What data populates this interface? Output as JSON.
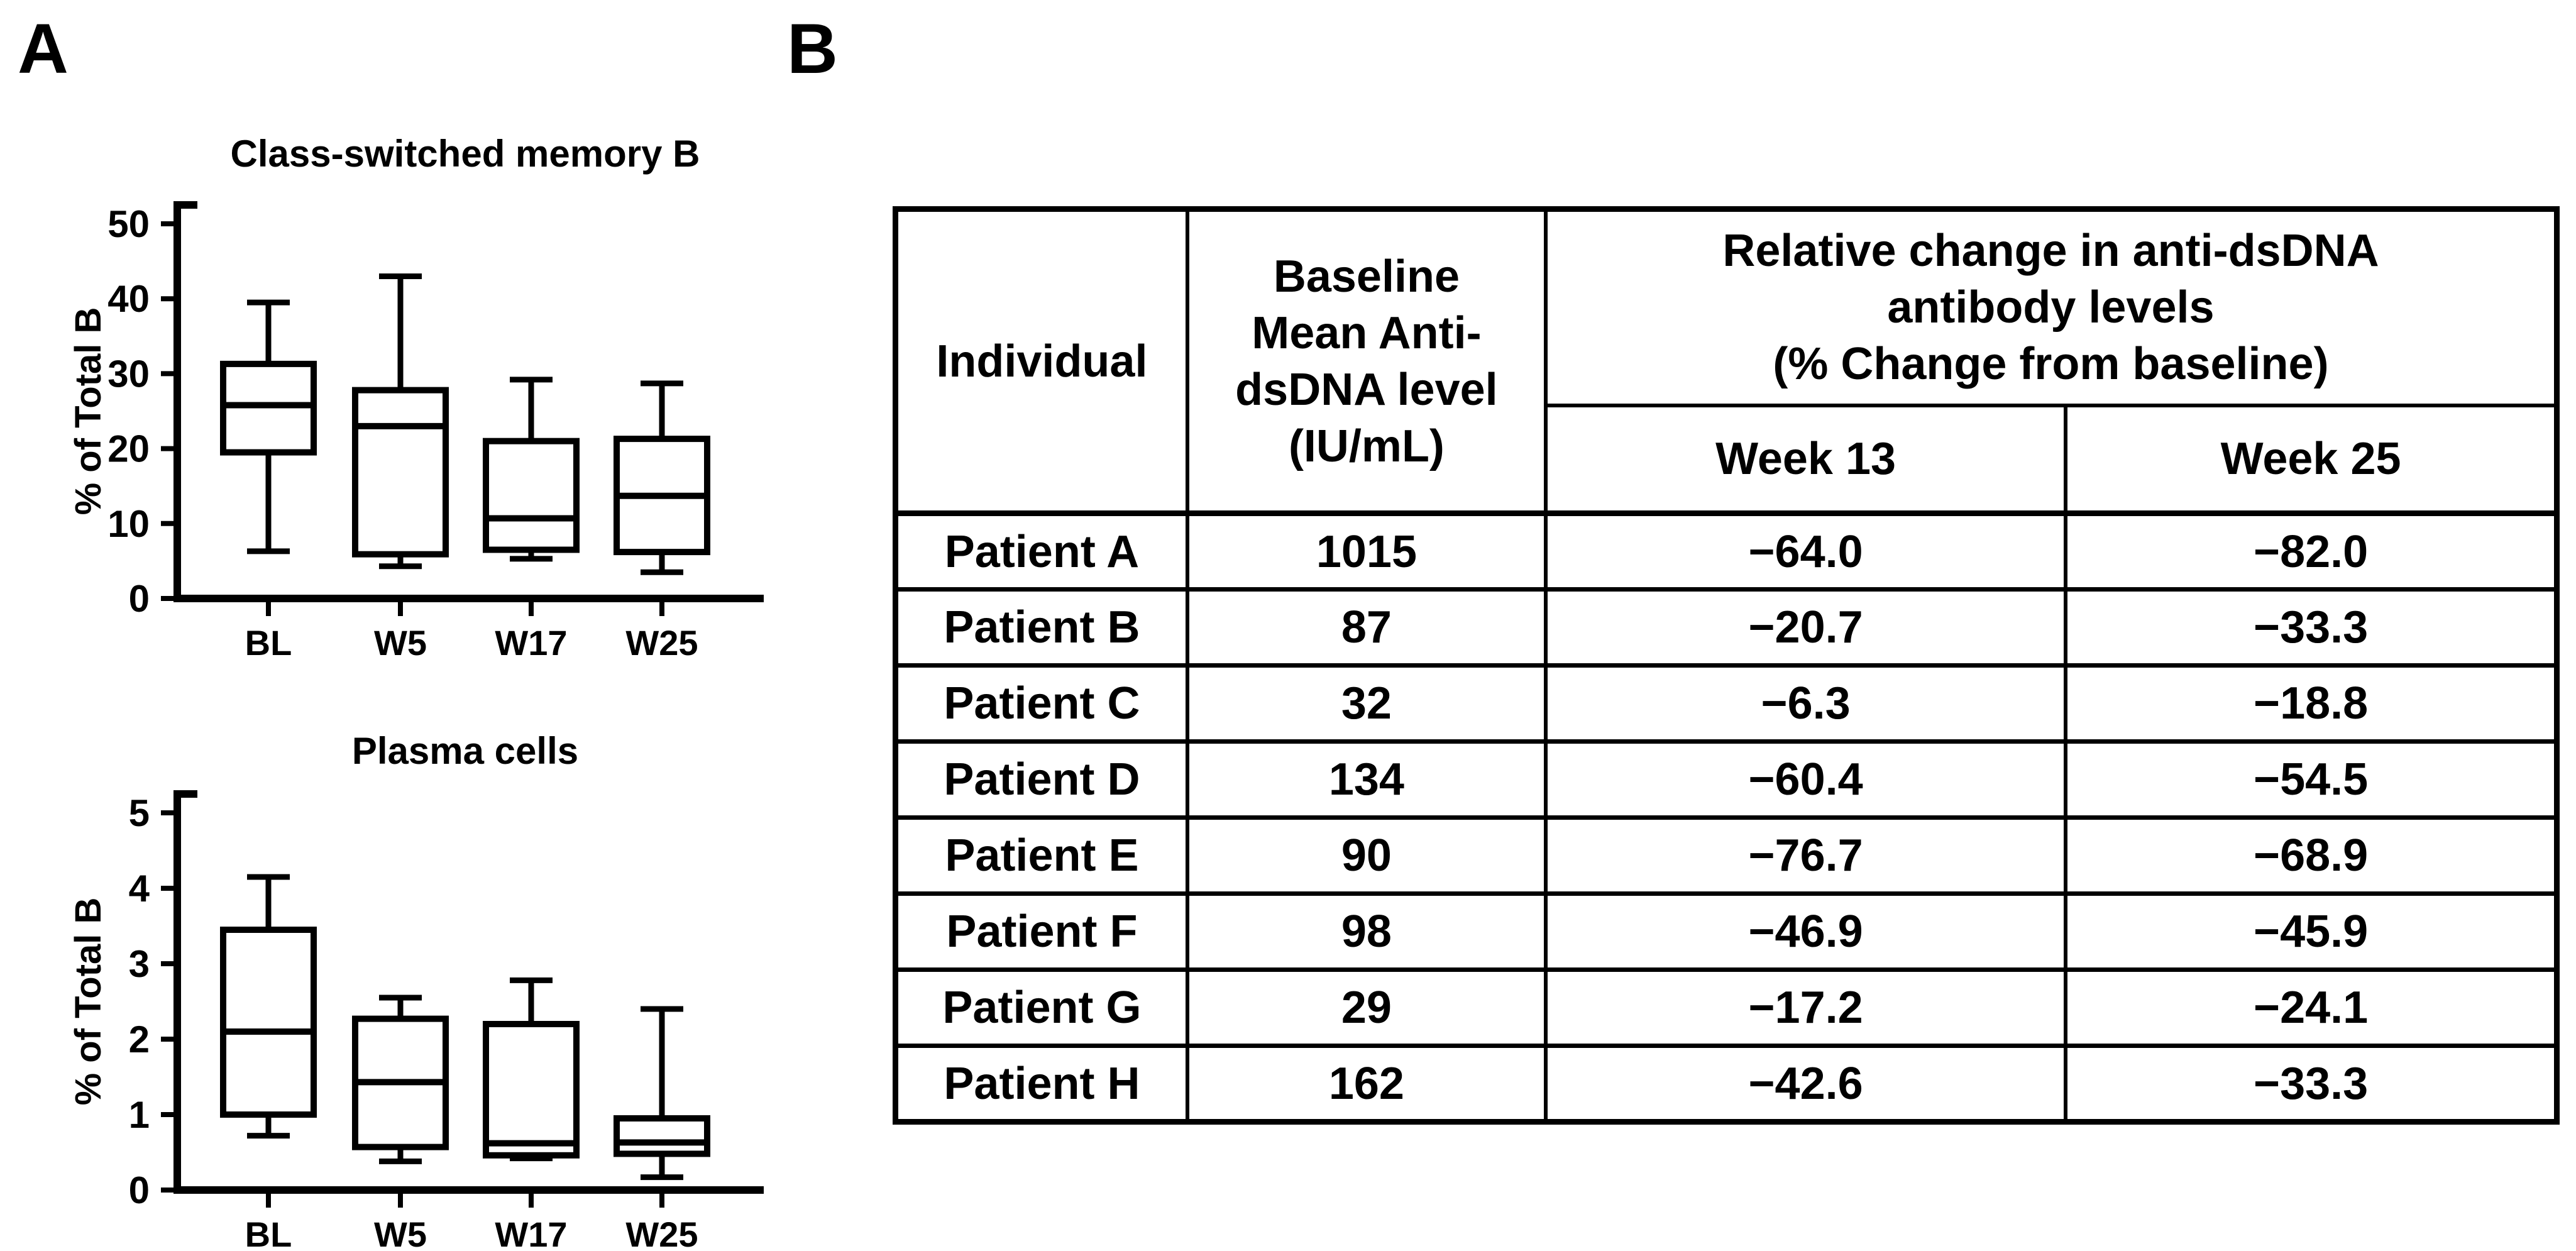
{
  "panels": {
    "a_label": "A",
    "b_label": "B"
  },
  "chart_data": [
    {
      "type": "box",
      "title": "Class-switched memory B",
      "xlabel": "",
      "ylabel": "% of Total B",
      "ylim": [
        0,
        50
      ],
      "yticks": [
        0,
        10,
        20,
        30,
        40,
        50
      ],
      "grid": false,
      "legend": "none",
      "categories": [
        "BL",
        "W5",
        "W17",
        "W25"
      ],
      "series": [
        {
          "name": "BL",
          "whisker_low": 6.3,
          "q1": 19.5,
          "median": 25.8,
          "q3": 31.3,
          "whisker_high": 39.5
        },
        {
          "name": "W5",
          "whisker_low": 4.3,
          "q1": 5.9,
          "median": 23.0,
          "q3": 27.8,
          "whisker_high": 43.0
        },
        {
          "name": "W17",
          "whisker_low": 5.3,
          "q1": 6.5,
          "median": 10.7,
          "q3": 21.0,
          "whisker_high": 29.2
        },
        {
          "name": "W25",
          "whisker_low": 3.5,
          "q1": 6.2,
          "median": 13.7,
          "q3": 21.3,
          "whisker_high": 28.7
        }
      ]
    },
    {
      "type": "box",
      "title": "Plasma cells",
      "xlabel": "",
      "ylabel": "% of Total B",
      "ylim": [
        0,
        5
      ],
      "yticks": [
        0,
        1,
        2,
        3,
        4,
        5
      ],
      "grid": false,
      "legend": "none",
      "categories": [
        "BL",
        "W5",
        "W17",
        "W25"
      ],
      "series": [
        {
          "name": "BL",
          "whisker_low": 0.72,
          "q1": 1.0,
          "median": 2.1,
          "q3": 3.45,
          "whisker_high": 4.15
        },
        {
          "name": "W5",
          "whisker_low": 0.38,
          "q1": 0.57,
          "median": 1.43,
          "q3": 2.27,
          "whisker_high": 2.55
        },
        {
          "name": "W17",
          "whisker_low": 0.42,
          "q1": 0.46,
          "median": 0.62,
          "q3": 2.2,
          "whisker_high": 2.78
        },
        {
          "name": "W25",
          "whisker_low": 0.17,
          "q1": 0.48,
          "median": 0.63,
          "q3": 0.95,
          "whisker_high": 2.4
        }
      ]
    }
  ],
  "table": {
    "headers": {
      "individual": "Individual",
      "baseline": "Baseline\nMean Anti-\ndsDNA level\n(IU/mL)",
      "relative": "Relative change in anti-dsDNA\nantibody levels\n(% Change from baseline)",
      "week13": "Week 13",
      "week25": "Week 25"
    },
    "rows": [
      {
        "individual": "Patient A",
        "baseline": "1015",
        "week13": "−64.0",
        "week25": "−82.0"
      },
      {
        "individual": "Patient B",
        "baseline": "87",
        "week13": "−20.7",
        "week25": "−33.3"
      },
      {
        "individual": "Patient C",
        "baseline": "32",
        "week13": "−6.3",
        "week25": "−18.8"
      },
      {
        "individual": "Patient D",
        "baseline": "134",
        "week13": "−60.4",
        "week25": "−54.5"
      },
      {
        "individual": "Patient E",
        "baseline": "90",
        "week13": "−76.7",
        "week25": "−68.9"
      },
      {
        "individual": "Patient F",
        "baseline": "98",
        "week13": "−46.9",
        "week25": "−45.9"
      },
      {
        "individual": "Patient G",
        "baseline": "29",
        "week13": "−17.2",
        "week25": "−24.1"
      },
      {
        "individual": "Patient H",
        "baseline": "162",
        "week13": "−42.6",
        "week25": "−33.3"
      }
    ]
  },
  "colors": {
    "foreground": "#000000",
    "background": "#ffffff"
  }
}
